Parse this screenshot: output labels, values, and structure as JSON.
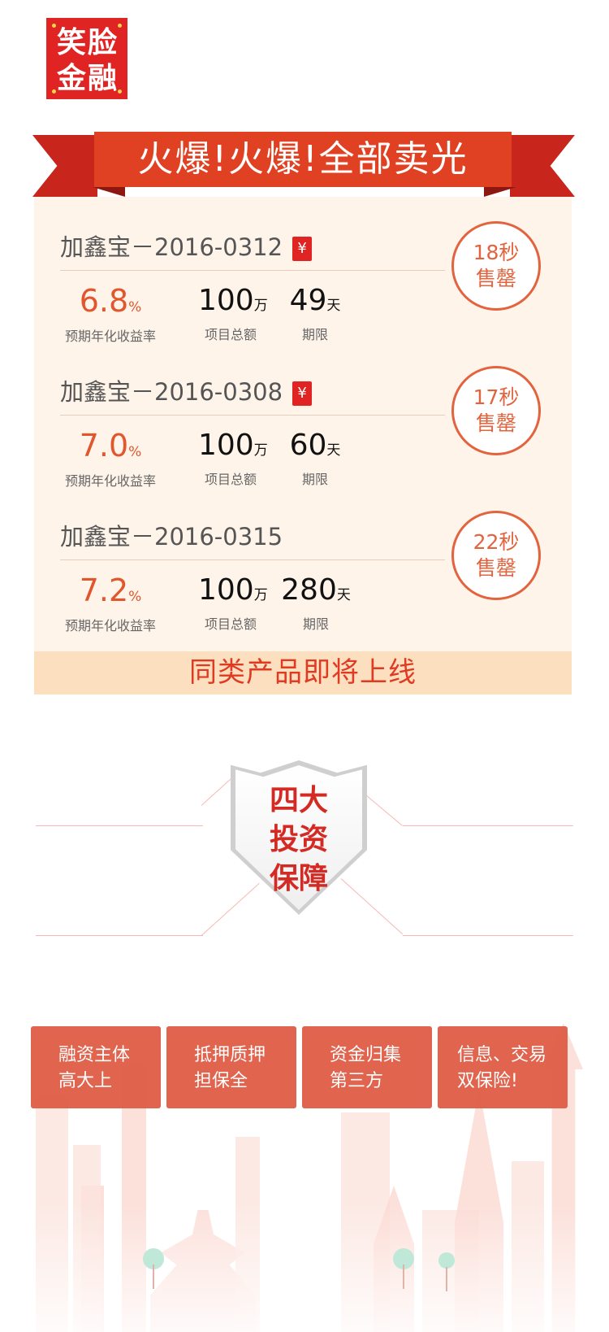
{
  "logo": {
    "line1": "笑脸",
    "line2": "金融"
  },
  "banner": {
    "title": "火爆!火爆!全部卖光"
  },
  "products": [
    {
      "name": "加鑫宝－2016-0312",
      "red_packet": true,
      "rate": "6.8",
      "rate_unit": "%",
      "rate_label": "预期年化收益率",
      "amount": "100",
      "amount_unit": "万",
      "amount_label": "项目总额",
      "term": "49",
      "term_unit": "天",
      "term_label": "期限",
      "sold_time": "18秒",
      "sold_text": "售罄"
    },
    {
      "name": "加鑫宝－2016-0308",
      "red_packet": true,
      "rate": "7.0",
      "rate_unit": "%",
      "rate_label": "预期年化收益率",
      "amount": "100",
      "amount_unit": "万",
      "amount_label": "项目总额",
      "term": "60",
      "term_unit": "天",
      "term_label": "期限",
      "sold_time": "17秒",
      "sold_text": "售罄"
    },
    {
      "name": "加鑫宝－2016-0315",
      "red_packet": false,
      "rate": "7.2",
      "rate_unit": "%",
      "rate_label": "预期年化收益率",
      "amount": "100",
      "amount_unit": "万",
      "amount_label": "项目总额",
      "term": "280",
      "term_unit": "天",
      "term_label": "期限",
      "sold_time": "22秒",
      "sold_text": "售罄"
    }
  ],
  "red_packet_icon": "¥",
  "card_footer": "同类产品即将上线",
  "shield": {
    "line1": "四大",
    "line2": "投资",
    "line3": "保障"
  },
  "guarantees": [
    {
      "line1": "融资主体",
      "line2": "高大上"
    },
    {
      "line1": "抵押质押",
      "line2": "担保全"
    },
    {
      "line1": "资金归集",
      "line2": "第三方"
    },
    {
      "line1": "信息、交易",
      "line2": "双保险!"
    }
  ],
  "colors": {
    "brand_red": "#e02424",
    "accent_orange": "#e1562c",
    "banner_red": "#e04123",
    "card_bg": "#fff4ea"
  }
}
